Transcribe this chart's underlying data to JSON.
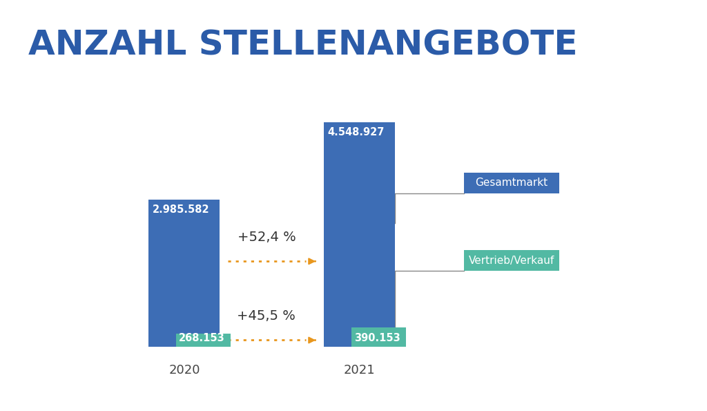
{
  "title": "ANZAHL STELLENANGEBOTE",
  "title_color": "#2B5BA8",
  "title_fontsize": 36,
  "background_color": "#FFFFFF",
  "bar_blue": "#3D6DB5",
  "bar_teal": "#52B9A3",
  "years": [
    "2020",
    "2021"
  ],
  "gesamtmarkt_values": [
    2985582,
    4548927
  ],
  "vertrieb_values": [
    268153,
    390153
  ],
  "gesamtmarkt_label_2020": "2.985.582",
  "gesamtmarkt_label_2021": "4.548.927",
  "vertrieb_label_2020": "268.153",
  "vertrieb_label_2021": "390.153",
  "pct_gesamtmarkt": "+52,4 %",
  "pct_vertrieb": "+45,5 %",
  "arrow_color": "#E8971E",
  "legend_gesamtmarkt": "Gesamtmarkt",
  "legend_vertrieb": "Vertrieb/Verkauf",
  "legend_gesamtmarkt_bg": "#3D6DB5",
  "legend_vertrieb_bg": "#52B9A3",
  "legend_text_color": "#FFFFFF",
  "connector_color": "#888888",
  "year_label_color": "#444444",
  "pct_text_color": "#333333"
}
